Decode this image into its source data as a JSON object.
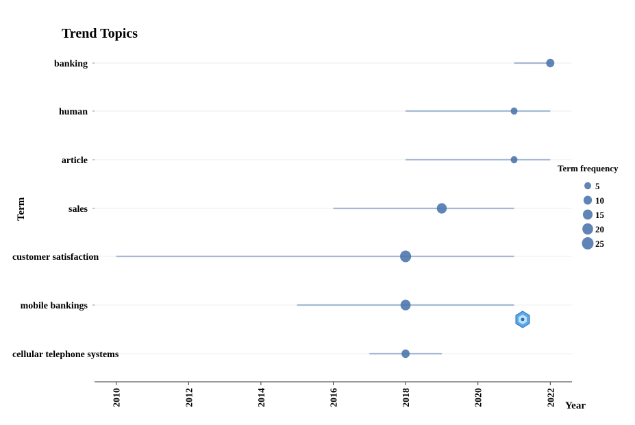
{
  "chart_data": {
    "type": "scatter",
    "title": "Trend Topics",
    "xlabel": "Year",
    "ylabel": "Term",
    "xlim": [
      2009.4,
      2022.6
    ],
    "x_ticks": [
      2010,
      2012,
      2014,
      2016,
      2018,
      2020,
      2022
    ],
    "grid": true,
    "legend": {
      "title": "Term frequency",
      "placement": "right",
      "entries": [
        5,
        10,
        15,
        20,
        25
      ]
    },
    "terms": [
      {
        "term": "banking",
        "year_q1": 2021,
        "year_median": 2022,
        "year_q3": 2022,
        "freq": 9
      },
      {
        "term": "human",
        "year_q1": 2018,
        "year_median": 2021,
        "year_q3": 2022,
        "freq": 5
      },
      {
        "term": "article",
        "year_q1": 2018,
        "year_median": 2021,
        "year_q3": 2022,
        "freq": 5
      },
      {
        "term": "sales",
        "year_q1": 2016,
        "year_median": 2019,
        "year_q3": 2021,
        "freq": 16
      },
      {
        "term": "customer satisfaction",
        "year_q1": 2010,
        "year_median": 2018,
        "year_q3": 2021,
        "freq": 22
      },
      {
        "term": "mobile bankings",
        "year_q1": 2015,
        "year_median": 2018,
        "year_q3": 2021,
        "freq": 17
      },
      {
        "term": "cellular telephone systems",
        "year_q1": 2017,
        "year_median": 2018,
        "year_q3": 2019,
        "freq": 9
      }
    ],
    "colors": {
      "point": "#4e77ad",
      "segment": "#a6b8d3",
      "grid": "#eeeeee",
      "axis": "#333333"
    }
  }
}
